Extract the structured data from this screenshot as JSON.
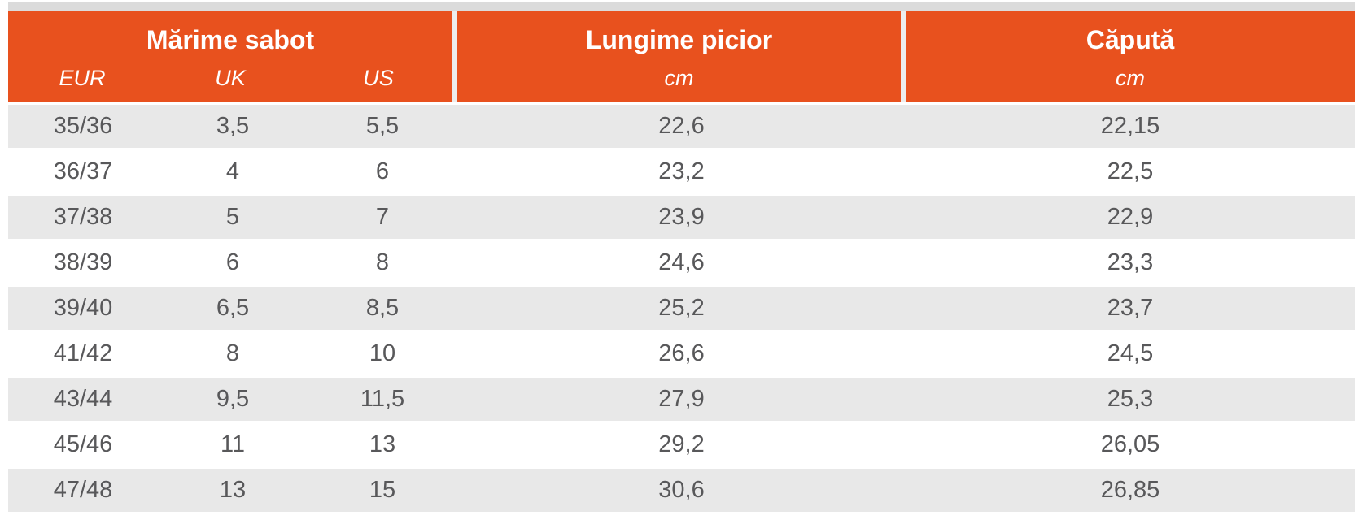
{
  "chart_data": {
    "type": "table",
    "columns": [
      {
        "group": "Mărime sabot",
        "sub": [
          "EUR",
          "UK",
          "US"
        ]
      },
      {
        "group": "Lungime picior",
        "sub": [
          "cm"
        ]
      },
      {
        "group": "Căpută",
        "sub": [
          "cm"
        ]
      }
    ],
    "rows": [
      [
        "35/36",
        "3,5",
        "5,5",
        "22,6",
        "22,15"
      ],
      [
        "36/37",
        "4",
        "6",
        "23,2",
        "22,5"
      ],
      [
        "37/38",
        "5",
        "7",
        "23,9",
        "22,9"
      ],
      [
        "38/39",
        "6",
        "8",
        "24,6",
        "23,3"
      ],
      [
        "39/40",
        "6,5",
        "8,5",
        "25,2",
        "23,7"
      ],
      [
        "41/42",
        "8",
        "10",
        "26,6",
        "24,5"
      ],
      [
        "43/44",
        "9,5",
        "11,5",
        "27,9",
        "25,3"
      ],
      [
        "45/46",
        "11",
        "13",
        "29,2",
        "26,05"
      ],
      [
        "47/48",
        "13",
        "15",
        "30,6",
        "26,85"
      ]
    ],
    "colors": {
      "accent": "#e8511e",
      "header_text": "#ffffff",
      "row_alt": "#e8e8e8",
      "row_base": "#ffffff",
      "top_strip": "#dbdbdb",
      "divider": "#ededed",
      "text": "#58585a"
    }
  }
}
